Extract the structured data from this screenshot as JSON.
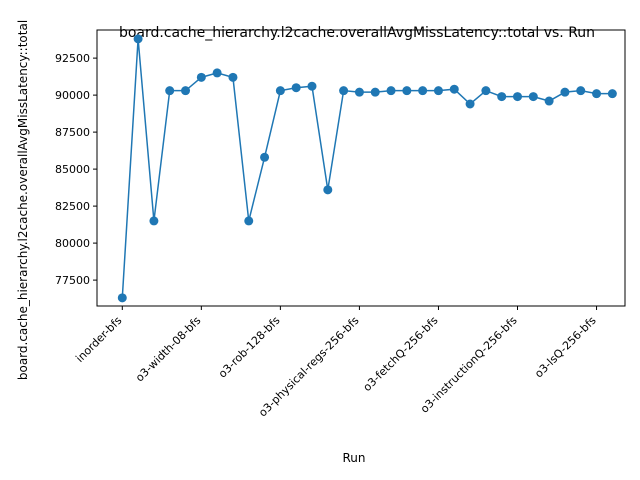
{
  "chart_data": {
    "type": "line",
    "title": "board.cache_hierarchy.l2cache.overallAvgMissLatency::total vs. Run",
    "xlabel": "Run",
    "ylabel": "board.cache_hierarchy.l2cache.overallAvgMissLatency::total",
    "x_tick_labels": [
      {
        "index": 0,
        "label": "inorder-bfs"
      },
      {
        "index": 5,
        "label": "o3-width-08-bfs"
      },
      {
        "index": 10,
        "label": "o3-rob-128-bfs"
      },
      {
        "index": 15,
        "label": "o3-physical-regs-256-bfs"
      },
      {
        "index": 20,
        "label": "o3-fetchQ-256-bfs"
      },
      {
        "index": 25,
        "label": "o3-instructionQ-256-bfs"
      },
      {
        "index": 30,
        "label": "o3-lsQ-256-bfs"
      }
    ],
    "y_ticks": [
      77500,
      80000,
      82500,
      85000,
      87500,
      90000,
      92500
    ],
    "ylim": [
      75750,
      94400
    ],
    "xlim": [
      -1.6,
      31.8
    ],
    "series": [
      {
        "name": "",
        "color": "#1f77b4",
        "values": [
          76300,
          93800,
          81500,
          90300,
          90300,
          91200,
          91500,
          91200,
          81500,
          85800,
          90300,
          90500,
          90600,
          83600,
          90300,
          90200,
          90200,
          90300,
          90300,
          90300,
          90300,
          90400,
          89400,
          90300,
          89900,
          89900,
          89900,
          89600,
          90200,
          90300,
          90100,
          90100
        ]
      }
    ],
    "grid": false,
    "legend": "none"
  }
}
